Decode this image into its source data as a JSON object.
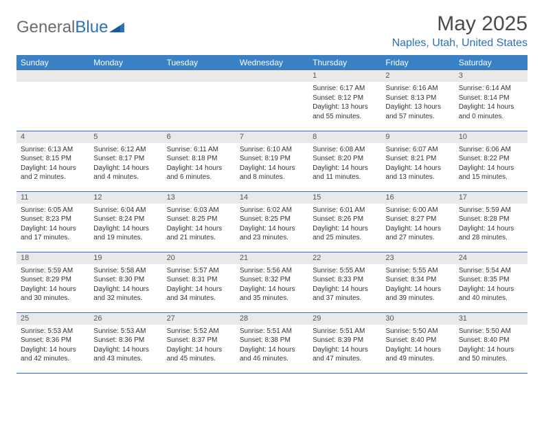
{
  "brand": {
    "general": "General",
    "blue": "Blue"
  },
  "colors": {
    "accent": "#2a71b8",
    "header_bg": "#3a80c4",
    "daybar_bg": "#e9e9e9",
    "text_muted": "#6b6b6b",
    "text_body": "#333333"
  },
  "title": "May 2025",
  "location": "Naples, Utah, United States",
  "day_headers": [
    "Sunday",
    "Monday",
    "Tuesday",
    "Wednesday",
    "Thursday",
    "Friday",
    "Saturday"
  ],
  "weeks": [
    [
      null,
      null,
      null,
      null,
      {
        "n": "1",
        "sunrise": "6:17 AM",
        "sunset": "8:12 PM",
        "daylight": "13 hours and 55 minutes."
      },
      {
        "n": "2",
        "sunrise": "6:16 AM",
        "sunset": "8:13 PM",
        "daylight": "13 hours and 57 minutes."
      },
      {
        "n": "3",
        "sunrise": "6:14 AM",
        "sunset": "8:14 PM",
        "daylight": "14 hours and 0 minutes."
      }
    ],
    [
      {
        "n": "4",
        "sunrise": "6:13 AM",
        "sunset": "8:15 PM",
        "daylight": "14 hours and 2 minutes."
      },
      {
        "n": "5",
        "sunrise": "6:12 AM",
        "sunset": "8:17 PM",
        "daylight": "14 hours and 4 minutes."
      },
      {
        "n": "6",
        "sunrise": "6:11 AM",
        "sunset": "8:18 PM",
        "daylight": "14 hours and 6 minutes."
      },
      {
        "n": "7",
        "sunrise": "6:10 AM",
        "sunset": "8:19 PM",
        "daylight": "14 hours and 8 minutes."
      },
      {
        "n": "8",
        "sunrise": "6:08 AM",
        "sunset": "8:20 PM",
        "daylight": "14 hours and 11 minutes."
      },
      {
        "n": "9",
        "sunrise": "6:07 AM",
        "sunset": "8:21 PM",
        "daylight": "14 hours and 13 minutes."
      },
      {
        "n": "10",
        "sunrise": "6:06 AM",
        "sunset": "8:22 PM",
        "daylight": "14 hours and 15 minutes."
      }
    ],
    [
      {
        "n": "11",
        "sunrise": "6:05 AM",
        "sunset": "8:23 PM",
        "daylight": "14 hours and 17 minutes."
      },
      {
        "n": "12",
        "sunrise": "6:04 AM",
        "sunset": "8:24 PM",
        "daylight": "14 hours and 19 minutes."
      },
      {
        "n": "13",
        "sunrise": "6:03 AM",
        "sunset": "8:25 PM",
        "daylight": "14 hours and 21 minutes."
      },
      {
        "n": "14",
        "sunrise": "6:02 AM",
        "sunset": "8:25 PM",
        "daylight": "14 hours and 23 minutes."
      },
      {
        "n": "15",
        "sunrise": "6:01 AM",
        "sunset": "8:26 PM",
        "daylight": "14 hours and 25 minutes."
      },
      {
        "n": "16",
        "sunrise": "6:00 AM",
        "sunset": "8:27 PM",
        "daylight": "14 hours and 27 minutes."
      },
      {
        "n": "17",
        "sunrise": "5:59 AM",
        "sunset": "8:28 PM",
        "daylight": "14 hours and 28 minutes."
      }
    ],
    [
      {
        "n": "18",
        "sunrise": "5:59 AM",
        "sunset": "8:29 PM",
        "daylight": "14 hours and 30 minutes."
      },
      {
        "n": "19",
        "sunrise": "5:58 AM",
        "sunset": "8:30 PM",
        "daylight": "14 hours and 32 minutes."
      },
      {
        "n": "20",
        "sunrise": "5:57 AM",
        "sunset": "8:31 PM",
        "daylight": "14 hours and 34 minutes."
      },
      {
        "n": "21",
        "sunrise": "5:56 AM",
        "sunset": "8:32 PM",
        "daylight": "14 hours and 35 minutes."
      },
      {
        "n": "22",
        "sunrise": "5:55 AM",
        "sunset": "8:33 PM",
        "daylight": "14 hours and 37 minutes."
      },
      {
        "n": "23",
        "sunrise": "5:55 AM",
        "sunset": "8:34 PM",
        "daylight": "14 hours and 39 minutes."
      },
      {
        "n": "24",
        "sunrise": "5:54 AM",
        "sunset": "8:35 PM",
        "daylight": "14 hours and 40 minutes."
      }
    ],
    [
      {
        "n": "25",
        "sunrise": "5:53 AM",
        "sunset": "8:36 PM",
        "daylight": "14 hours and 42 minutes."
      },
      {
        "n": "26",
        "sunrise": "5:53 AM",
        "sunset": "8:36 PM",
        "daylight": "14 hours and 43 minutes."
      },
      {
        "n": "27",
        "sunrise": "5:52 AM",
        "sunset": "8:37 PM",
        "daylight": "14 hours and 45 minutes."
      },
      {
        "n": "28",
        "sunrise": "5:51 AM",
        "sunset": "8:38 PM",
        "daylight": "14 hours and 46 minutes."
      },
      {
        "n": "29",
        "sunrise": "5:51 AM",
        "sunset": "8:39 PM",
        "daylight": "14 hours and 47 minutes."
      },
      {
        "n": "30",
        "sunrise": "5:50 AM",
        "sunset": "8:40 PM",
        "daylight": "14 hours and 49 minutes."
      },
      {
        "n": "31",
        "sunrise": "5:50 AM",
        "sunset": "8:40 PM",
        "daylight": "14 hours and 50 minutes."
      }
    ]
  ],
  "labels": {
    "sunrise_prefix": "Sunrise: ",
    "sunset_prefix": "Sunset: ",
    "daylight_prefix": "Daylight: "
  }
}
